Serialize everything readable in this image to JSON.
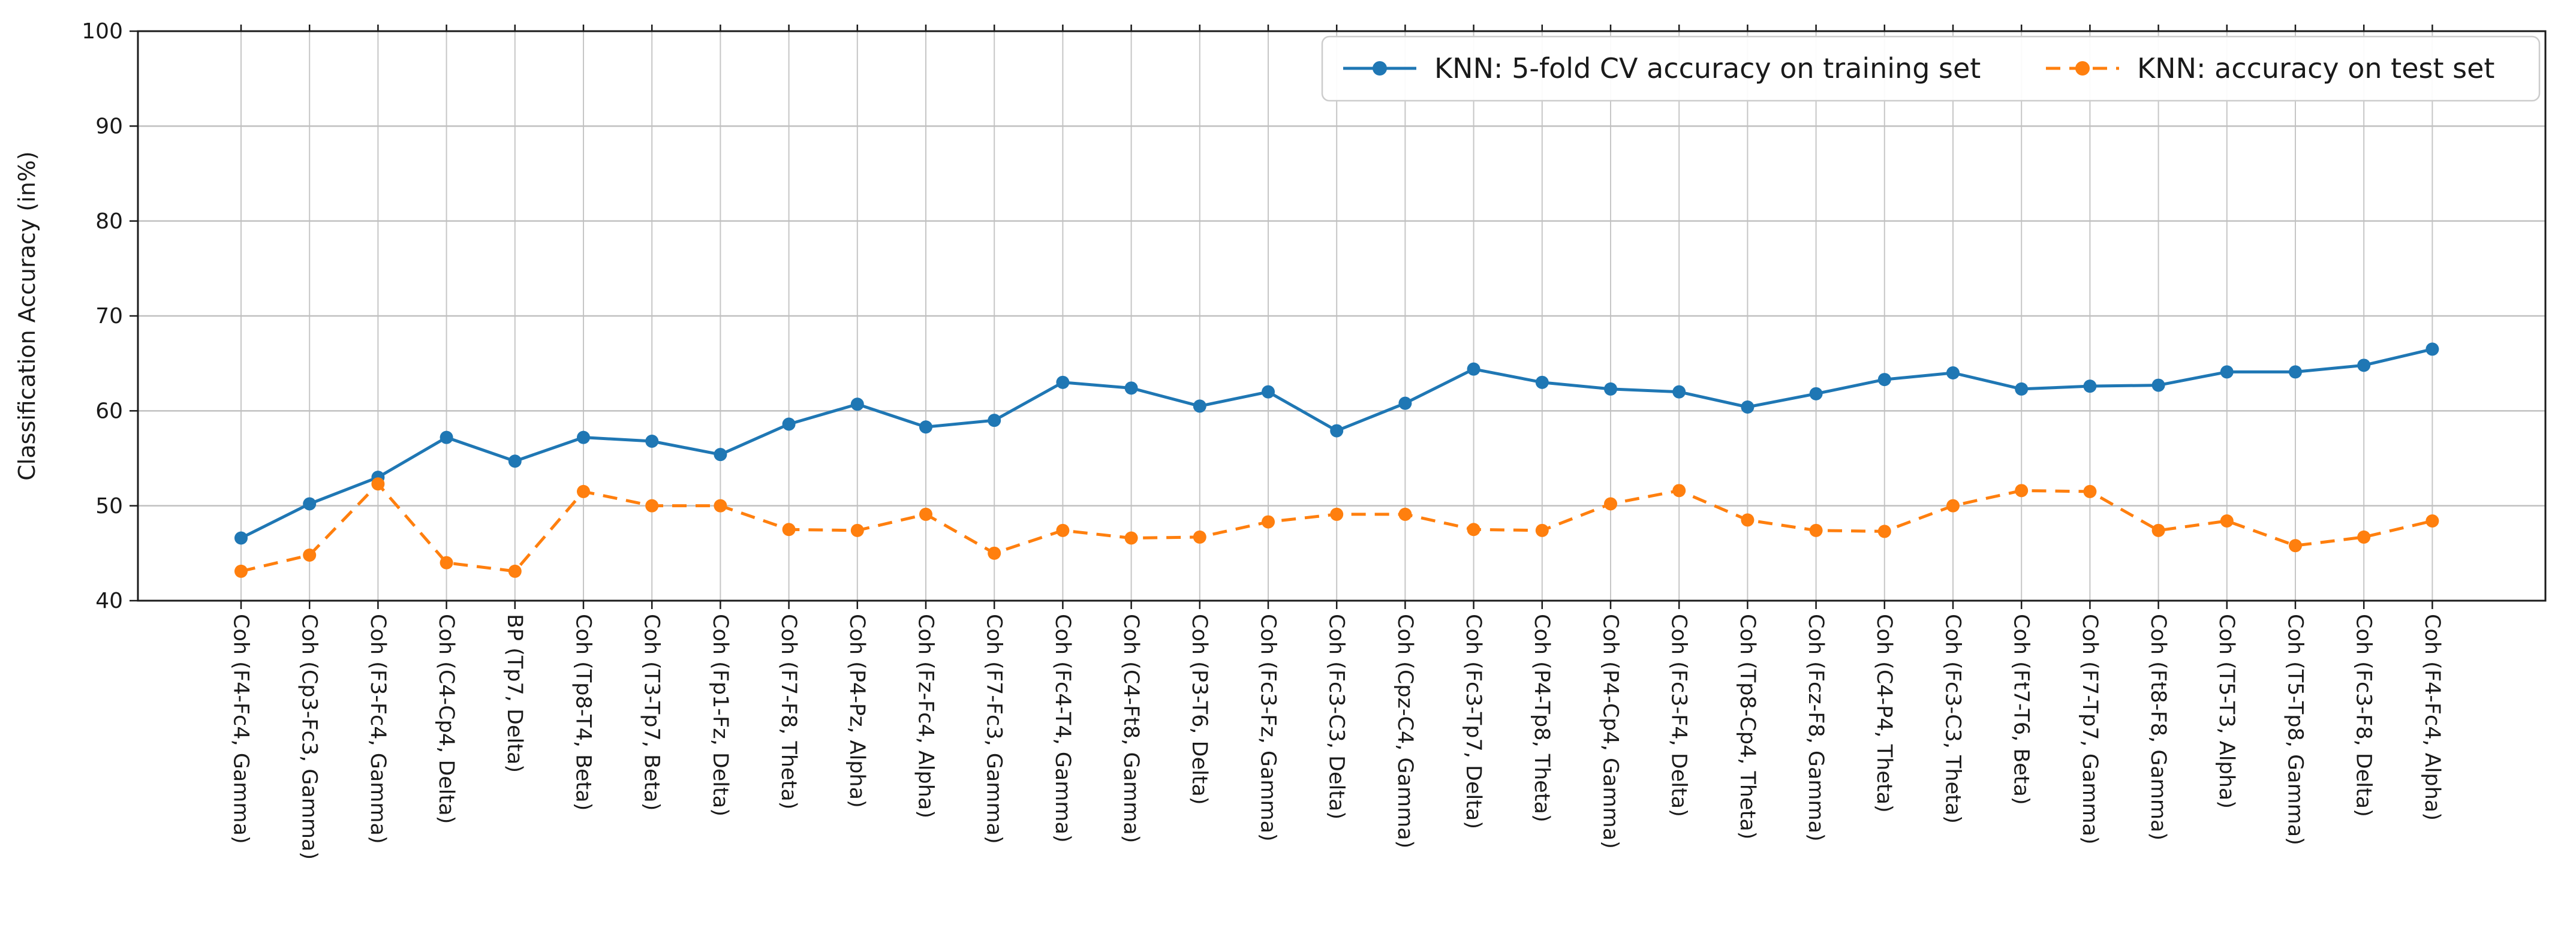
{
  "chart_data": {
    "type": "line",
    "title": "",
    "xlabel": "",
    "ylabel": "Classification Accuracy (in%)",
    "ylim": [
      40,
      100
    ],
    "yticks": [
      40,
      50,
      60,
      70,
      80,
      90,
      100
    ],
    "grid": true,
    "legend_position": "upper right",
    "categories": [
      "Coh (F4-Fc4, Gamma)",
      "Coh (Cp3-Fc3, Gamma)",
      "Coh (F3-Fc4, Gamma)",
      "Coh (C4-Cp4, Delta)",
      "BP (Tp7, Delta)",
      "Coh (Tp8-T4, Beta)",
      "Coh (T3-Tp7, Beta)",
      "Coh (Fp1-Fz, Delta)",
      "Coh (F7-F8, Theta)",
      "Coh (P4-Pz, Alpha)",
      "Coh (Fz-Fc4, Alpha)",
      "Coh (F7-Fc3, Gamma)",
      "Coh (Fc4-T4, Gamma)",
      "Coh (C4-Ft8, Gamma)",
      "Coh (P3-T6, Delta)",
      "Coh (Fc3-Fz, Gamma)",
      "Coh (Fc3-C3, Delta)",
      "Coh (Cpz-C4, Gamma)",
      "Coh (Fc3-Tp7, Delta)",
      "Coh (P4-Tp8, Theta)",
      "Coh (P4-Cp4, Gamma)",
      "Coh (Fc3-F4, Delta)",
      "Coh (Tp8-Cp4, Theta)",
      "Coh (Fcz-F8, Gamma)",
      "Coh (C4-P4, Theta)",
      "Coh (Fc3-C3, Theta)",
      "Coh (Ft7-T6, Beta)",
      "Coh (F7-Tp7, Gamma)",
      "Coh (Ft8-F8, Gamma)",
      "Coh (T5-T3, Alpha)",
      "Coh (T5-Tp8, Gamma)",
      "Coh (Fc3-F8, Delta)",
      "Coh (F4-Fc4, Alpha)"
    ],
    "series": [
      {
        "name": "KNN: 5-fold CV accuracy on training set",
        "color": "#1f77b4",
        "style": "solid",
        "marker": "circle",
        "values": [
          46.6,
          50.2,
          53.0,
          57.2,
          54.7,
          57.2,
          56.8,
          55.4,
          58.6,
          60.7,
          58.3,
          59.0,
          63.0,
          62.4,
          60.5,
          62.0,
          57.9,
          60.8,
          64.4,
          63.0,
          62.3,
          62.0,
          60.4,
          61.8,
          63.3,
          64.0,
          62.3,
          62.6,
          62.7,
          64.1,
          64.1,
          64.8,
          66.5
        ]
      },
      {
        "name": "KNN: accuracy on test set",
        "color": "#ff7f0e",
        "style": "dashed",
        "marker": "circle",
        "values": [
          43.1,
          44.8,
          52.3,
          44.0,
          43.1,
          51.5,
          50.0,
          50.0,
          47.5,
          47.4,
          49.1,
          45.0,
          47.4,
          46.6,
          46.7,
          48.3,
          49.1,
          49.1,
          47.5,
          47.4,
          50.2,
          51.6,
          48.5,
          47.4,
          47.3,
          50.0,
          51.6,
          51.5,
          47.4,
          48.4,
          45.8,
          46.7,
          48.4
        ]
      }
    ]
  },
  "colors": {
    "grid_vertical": "#c6c6c6",
    "grid_horizontal": "#c0c0c0",
    "axis": "#1a1a1a",
    "text": "#1a1a1a",
    "legend_border": "#cccccc",
    "background": "#ffffff"
  }
}
